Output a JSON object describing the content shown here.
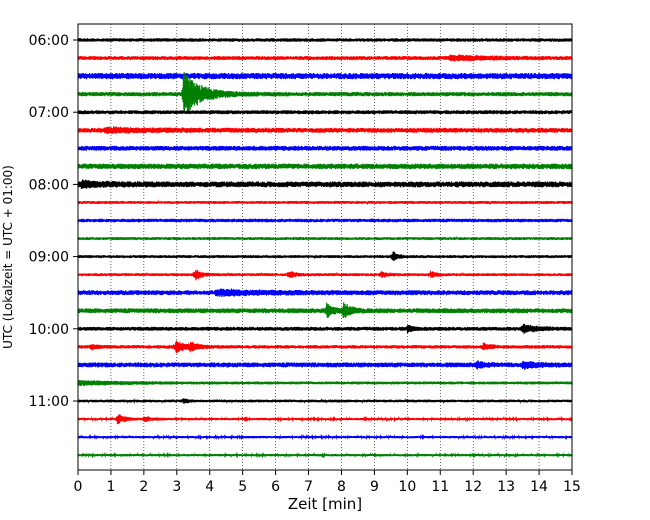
{
  "chart_data": {
    "type": "line",
    "title": "",
    "xlabel": "Zeit  [min]",
    "ylabel": "UTC (Lokalzeit = UTC + 01:00)",
    "xlim": [
      0,
      15
    ],
    "x_ticks": [
      0,
      1,
      2,
      3,
      4,
      5,
      6,
      7,
      8,
      9,
      10,
      11,
      12,
      13,
      14,
      15
    ],
    "y_tick_labels": [
      "06:00",
      "07:00",
      "08:00",
      "09:00",
      "10:00",
      "11:00"
    ],
    "start_time": "06:00",
    "trace_interval_min": 15,
    "grid": "vertical dotted at each minute",
    "colors": [
      "#000000",
      "#ff0000",
      "#0000ff",
      "#008000"
    ],
    "traces": [
      {
        "time": "06:00",
        "color": "#000000",
        "noise": 0.18,
        "events": []
      },
      {
        "time": "06:15",
        "color": "#ff0000",
        "noise": 0.2,
        "events": [
          {
            "x": 11.3,
            "amp": 0.22,
            "dur": 2.5
          }
        ]
      },
      {
        "time": "06:30",
        "color": "#0000ff",
        "noise": 0.32,
        "events": []
      },
      {
        "time": "06:45",
        "color": "#008000",
        "noise": 0.22,
        "events": [
          {
            "x": 3.2,
            "amp": 2.1,
            "dur": 1.2
          }
        ]
      },
      {
        "time": "07:00",
        "color": "#000000",
        "noise": 0.2,
        "events": []
      },
      {
        "time": "07:15",
        "color": "#ff0000",
        "noise": 0.25,
        "events": [
          {
            "x": 0.8,
            "amp": 0.18,
            "dur": 3.0
          }
        ]
      },
      {
        "time": "07:30",
        "color": "#0000ff",
        "noise": 0.25,
        "events": []
      },
      {
        "time": "07:45",
        "color": "#008000",
        "noise": 0.28,
        "events": []
      },
      {
        "time": "08:00",
        "color": "#000000",
        "noise": 0.3,
        "events": [
          {
            "x": 0.1,
            "amp": 0.25,
            "dur": 1.5
          }
        ]
      },
      {
        "time": "08:15",
        "color": "#ff0000",
        "noise": 0.15,
        "events": []
      },
      {
        "time": "08:30",
        "color": "#0000ff",
        "noise": 0.18,
        "events": []
      },
      {
        "time": "08:45",
        "color": "#008000",
        "noise": 0.15,
        "events": []
      },
      {
        "time": "09:00",
        "color": "#000000",
        "noise": 0.15,
        "events": [
          {
            "x": 9.55,
            "amp": 0.55,
            "dur": 0.3
          }
        ]
      },
      {
        "time": "09:15",
        "color": "#ff0000",
        "noise": 0.15,
        "events": [
          {
            "x": 3.55,
            "amp": 0.55,
            "dur": 0.4
          },
          {
            "x": 6.4,
            "amp": 0.35,
            "dur": 0.4
          },
          {
            "x": 9.2,
            "amp": 0.3,
            "dur": 0.4
          },
          {
            "x": 10.7,
            "amp": 0.3,
            "dur": 0.4
          }
        ]
      },
      {
        "time": "09:30",
        "color": "#0000ff",
        "noise": 0.25,
        "events": [
          {
            "x": 4.2,
            "amp": 0.25,
            "dur": 3.0
          }
        ]
      },
      {
        "time": "09:45",
        "color": "#008000",
        "noise": 0.25,
        "events": [
          {
            "x": 7.55,
            "amp": 0.7,
            "dur": 0.4
          },
          {
            "x": 8.05,
            "amp": 0.7,
            "dur": 0.5
          }
        ]
      },
      {
        "time": "10:00",
        "color": "#000000",
        "noise": 0.2,
        "events": [
          {
            "x": 10.0,
            "amp": 0.3,
            "dur": 0.4
          },
          {
            "x": 13.5,
            "amp": 0.35,
            "dur": 1.0
          }
        ]
      },
      {
        "time": "10:15",
        "color": "#ff0000",
        "noise": 0.18,
        "events": [
          {
            "x": 2.95,
            "amp": 0.55,
            "dur": 0.6
          },
          {
            "x": 3.4,
            "amp": 0.45,
            "dur": 0.5
          },
          {
            "x": 0.4,
            "amp": 0.3,
            "dur": 0.3
          },
          {
            "x": 12.3,
            "amp": 0.3,
            "dur": 0.5
          }
        ]
      },
      {
        "time": "10:30",
        "color": "#0000ff",
        "noise": 0.25,
        "events": [
          {
            "x": 12.1,
            "amp": 0.3,
            "dur": 0.5
          },
          {
            "x": 13.5,
            "amp": 0.3,
            "dur": 1.0
          }
        ]
      },
      {
        "time": "10:45",
        "color": "#008000",
        "noise": 0.15,
        "events": [
          {
            "x": 0.0,
            "amp": 0.22,
            "dur": 2.8
          }
        ]
      },
      {
        "time": "11:00",
        "color": "#000000",
        "noise": 0.14,
        "events": [
          {
            "x": 3.2,
            "amp": 0.25,
            "dur": 0.3
          }
        ]
      },
      {
        "time": "11:15",
        "color": "#ff0000",
        "noise": 0.12,
        "events": [
          {
            "x": 1.2,
            "amp": 0.5,
            "dur": 0.5
          },
          {
            "x": 2.0,
            "amp": 0.25,
            "dur": 0.6
          }
        ]
      },
      {
        "time": "11:30",
        "color": "#0000ff",
        "noise": 0.12,
        "events": []
      },
      {
        "time": "11:45",
        "color": "#008000",
        "noise": 0.12,
        "events": []
      }
    ]
  }
}
